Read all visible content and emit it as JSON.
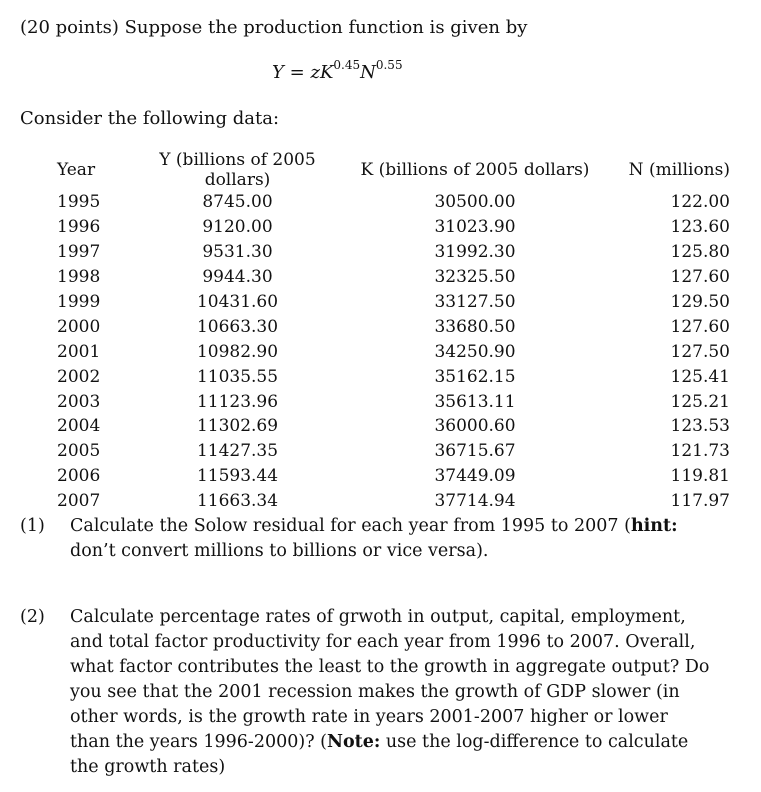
{
  "problem": {
    "intro": "(20 points) Suppose the production function is given by",
    "formula": {
      "lhs": "Y",
      "equals": "=",
      "z": "z",
      "K": "K",
      "K_exp": "0.45",
      "N": "N",
      "N_exp": "0.55"
    },
    "consider": "Consider the following data:"
  },
  "table": {
    "headers": [
      "Year",
      "Y (billions of 2005 dollars)",
      "K (billions of 2005 dollars)",
      "N (millions)"
    ],
    "rows": [
      [
        "1995",
        "8745.00",
        "30500.00",
        "122.00"
      ],
      [
        "1996",
        "9120.00",
        "31023.90",
        "123.60"
      ],
      [
        "1997",
        "9531.30",
        "31992.30",
        "125.80"
      ],
      [
        "1998",
        "9944.30",
        "32325.50",
        "127.60"
      ],
      [
        "1999",
        "10431.60",
        "33127.50",
        "129.50"
      ],
      [
        "2000",
        "10663.30",
        "33680.50",
        "127.60"
      ],
      [
        "2001",
        "10982.90",
        "34250.90",
        "127.50"
      ],
      [
        "2002",
        "11035.55",
        "35162.15",
        "125.41"
      ],
      [
        "2003",
        "11123.96",
        "35613.11",
        "125.21"
      ],
      [
        "2004",
        "11302.69",
        "36000.60",
        "123.53"
      ],
      [
        "2005",
        "11427.35",
        "36715.67",
        "121.73"
      ],
      [
        "2006",
        "11593.44",
        "37449.09",
        "119.81"
      ],
      [
        "2007",
        "11663.34",
        "37714.94",
        "117.97"
      ]
    ]
  },
  "questions": [
    {
      "number": "(1)",
      "text_before": "Calculate the Solow residual for each year from 1995 to 2007 (",
      "bold": "hint:",
      "text_after": " don’t convert millions to billions or vice versa)."
    },
    {
      "number": "(2)",
      "text_before": "Calculate percentage rates of grwoth in output, capital, employment, and total factor productivity for each year from 1996 to 2007. Overall, what factor contributes the least to the growth in aggregate output? Do you see that the 2001 recession makes the growth of GDP slower (in other words, is the growth rate in years 2001-2007 higher or lower than the years 1996-2000)? (",
      "bold": "Note:",
      "text_after": " use the log-difference to calculate the growth rates)"
    }
  ]
}
